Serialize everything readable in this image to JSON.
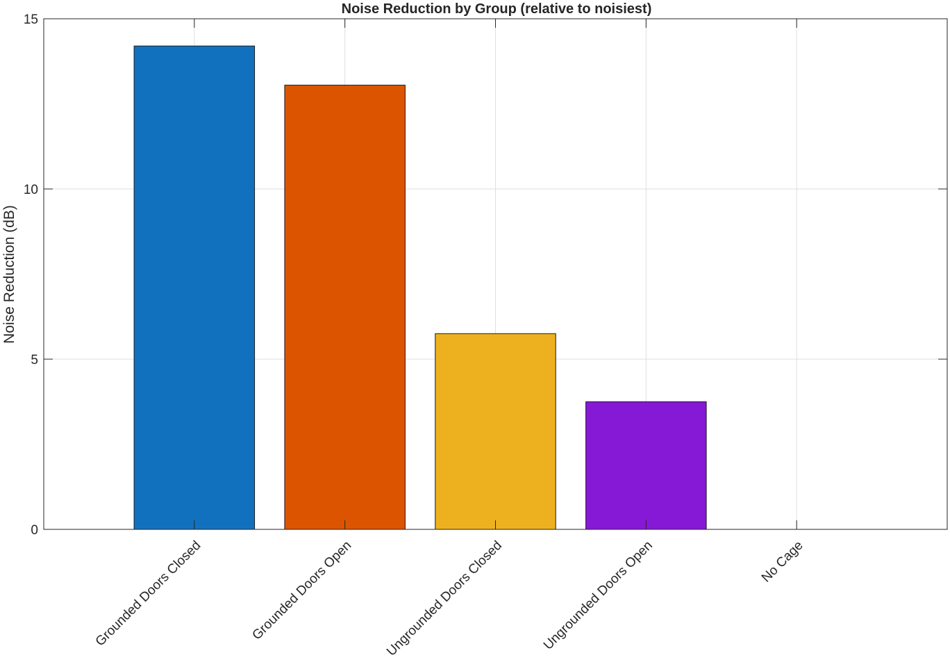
{
  "chart_data": {
    "type": "bar",
    "title": "Noise Reduction by Group (relative to noisiest)",
    "xlabel": "",
    "ylabel": "Noise Reduction (dB)",
    "categories": [
      "Grounded Doors Closed",
      "Grounded Doors Open",
      "Ungrounded Doors Closed",
      "Ungrounded Doors Open",
      "No Cage"
    ],
    "values": [
      14.2,
      13.05,
      5.75,
      3.75,
      0
    ],
    "colors": [
      "#1171be",
      "#dd5400",
      "#edb120",
      "#8619d6",
      "#3bbadf"
    ],
    "ylim": [
      0,
      15
    ],
    "yticks": [
      0,
      5,
      10,
      15
    ],
    "grid": true,
    "legend": "none"
  }
}
